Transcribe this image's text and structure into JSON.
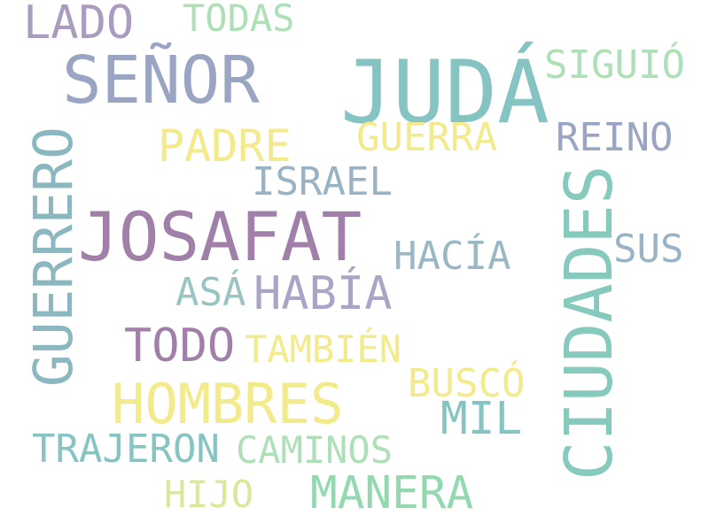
{
  "words": [
    {
      "text": "JUDÁ",
      "color": "#86c4c4"
    },
    {
      "text": "JOSAFAT",
      "color": "#a07fa8"
    },
    {
      "text": "SEÑOR",
      "color": "#9aa5c4"
    },
    {
      "text": "CIUDADES",
      "color": "#86cabd"
    },
    {
      "text": "GUERRERO",
      "color": "#8bb8c0"
    },
    {
      "text": "HOMBRES",
      "color": "#f3ea8c"
    },
    {
      "text": "HABÍA",
      "color": "#a7a6c7"
    },
    {
      "text": "LADO",
      "color": "#a99cbf"
    },
    {
      "text": "TODO",
      "color": "#a07fa8"
    },
    {
      "text": "PADRE",
      "color": "#f3ea8c"
    },
    {
      "text": "MANERA",
      "color": "#92d9b0"
    },
    {
      "text": "MIL",
      "color": "#86c4c4"
    },
    {
      "text": "GUERRA",
      "color": "#f3ea8c"
    },
    {
      "text": "REINO",
      "color": "#9aa5c4"
    },
    {
      "text": "ISRAEL",
      "color": "#9ab3c4"
    },
    {
      "text": "HACÍA",
      "color": "#9ab8c4"
    },
    {
      "text": "SIGUIÓ",
      "color": "#aee0b8"
    },
    {
      "text": "TODAS",
      "color": "#aee0b8"
    },
    {
      "text": "ASÁ",
      "color": "#9ac4c4"
    },
    {
      "text": "SUS",
      "color": "#9ab3c4"
    },
    {
      "text": "TAMBIÉN",
      "color": "#f3ea8c"
    },
    {
      "text": "BUSCÓ",
      "color": "#f3ea8c"
    },
    {
      "text": "TRAJERON",
      "color": "#86c4c4"
    },
    {
      "text": "CAMINOS",
      "color": "#aee0b8"
    },
    {
      "text": "HIJO",
      "color": "#d8ea9a"
    }
  ]
}
